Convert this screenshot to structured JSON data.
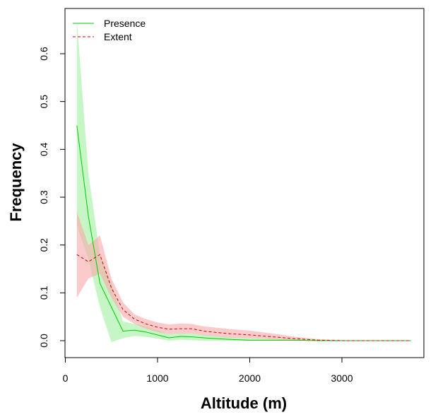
{
  "chart_data": {
    "type": "line",
    "title": "",
    "xlabel": "Altitude (m)",
    "ylabel": "Frequency",
    "xlim": [
      0,
      3875
    ],
    "ylim": [
      -0.035,
      0.69
    ],
    "xticks": [
      "0",
      "1000",
      "2000",
      "3000"
    ],
    "xtick_values": [
      0,
      1000,
      2000,
      3000
    ],
    "yticks": [
      "0.0",
      "0.1",
      "0.2",
      "0.3",
      "0.4",
      "0.5",
      "0.6"
    ],
    "ytick_values": [
      0,
      0.1,
      0.2,
      0.3,
      0.4,
      0.5,
      0.6
    ],
    "grid": false,
    "legend_position": "top-left",
    "x": [
      125,
      250,
      375,
      500,
      625,
      750,
      875,
      1000,
      1125,
      1250,
      1375,
      1500,
      1750,
      2000,
      2250,
      2500,
      2750,
      3000,
      3250,
      3500,
      3750
    ],
    "series": [
      {
        "name": "Presence",
        "color": "#00cc00",
        "line_style": "solid",
        "band_color": "#a0f0a0",
        "values": [
          0.45,
          0.26,
          0.12,
          0.07,
          0.02,
          0.022,
          0.018,
          0.012,
          0.006,
          0.009,
          0.008,
          0.006,
          0.003,
          0.001,
          0.001,
          0.001,
          0,
          0,
          0,
          0,
          0
        ],
        "lower": [
          0.24,
          0.17,
          0.07,
          -0.003,
          0.005,
          0.01,
          0.008,
          0.004,
          0.0,
          0.002,
          0.001,
          0.0,
          0.0,
          0.0,
          0.0,
          0.0,
          0,
          0,
          0,
          0,
          0
        ],
        "upper": [
          0.67,
          0.35,
          0.18,
          0.12,
          0.04,
          0.035,
          0.03,
          0.022,
          0.014,
          0.016,
          0.015,
          0.012,
          0.008,
          0.005,
          0.004,
          0.003,
          0.002,
          0.001,
          0,
          0,
          0
        ]
      },
      {
        "name": "Extent",
        "color": "#cc0000",
        "line_style": "dashed",
        "band_color": "#f8a8a8",
        "values": [
          0.18,
          0.165,
          0.18,
          0.11,
          0.065,
          0.045,
          0.035,
          0.028,
          0.024,
          0.025,
          0.025,
          0.02,
          0.015,
          0.012,
          0.008,
          0.004,
          0.001,
          0,
          0,
          0,
          0
        ],
        "lower": [
          0.09,
          0.13,
          0.14,
          0.09,
          0.05,
          0.035,
          0.025,
          0.018,
          0.014,
          0.015,
          0.015,
          0.011,
          0.007,
          0.005,
          0.003,
          0.001,
          0,
          0,
          0,
          0,
          0
        ],
        "upper": [
          0.27,
          0.2,
          0.22,
          0.13,
          0.08,
          0.055,
          0.045,
          0.038,
          0.034,
          0.036,
          0.035,
          0.03,
          0.025,
          0.021,
          0.015,
          0.008,
          0.003,
          0.001,
          0,
          0,
          0
        ]
      }
    ]
  }
}
